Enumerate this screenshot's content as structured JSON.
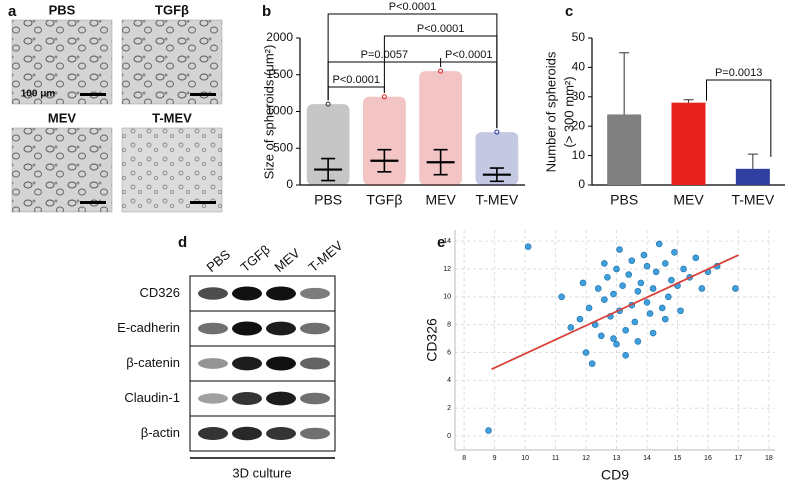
{
  "panel_labels": [
    "a",
    "b",
    "c",
    "d",
    "e"
  ],
  "micrographs": {
    "labels": [
      "PBS",
      "TGFβ",
      "MEV",
      "T-MEV"
    ],
    "scale_bar": "100 μm"
  },
  "chart_data": [
    {
      "type": "dot",
      "ylabel": "Size of spheroids (μm²)",
      "categories": [
        "PBS",
        "TGFβ",
        "MEV",
        "T-MEV"
      ],
      "colors": [
        "#333333",
        "#d42a2a",
        "#d42a2a",
        "#2b3a9c"
      ],
      "values": [
        210,
        330,
        310,
        140
      ],
      "errors": [
        150,
        150,
        170,
        90
      ],
      "max": [
        1100,
        1200,
        1550,
        720
      ],
      "ylim": [
        0,
        2000
      ],
      "yticks": [
        0,
        500,
        1000,
        1500,
        2000
      ],
      "annotations": [
        {
          "text": "P<0.0001",
          "between": [
            0,
            1
          ]
        },
        {
          "text": "P=0.0057",
          "between": [
            0,
            2
          ]
        },
        {
          "text": "P<0.0001",
          "between": [
            2,
            3
          ]
        },
        {
          "text": "P<0.0001",
          "between": [
            1,
            3
          ]
        },
        {
          "text": "P<0.0001",
          "between": [
            0,
            3
          ]
        }
      ]
    },
    {
      "type": "bar",
      "ylabel": [
        "Number of spheroids",
        "(> 300 mm²)"
      ],
      "categories": [
        "PBS",
        "MEV",
        "T-MEV"
      ],
      "colors": [
        "#808080",
        "#e8201e",
        "#2e3fa0"
      ],
      "values": [
        24,
        28,
        5.5
      ],
      "errors": [
        21,
        1,
        5
      ],
      "ylim": [
        0,
        50
      ],
      "yticks": [
        0,
        10,
        20,
        30,
        40,
        50
      ],
      "annotations": [
        {
          "text": "P=0.0013",
          "between": [
            1,
            2
          ]
        }
      ]
    },
    {
      "type": "scatter",
      "xlabel": "CD9",
      "ylabel": "CD326",
      "color": "#3f9fdc",
      "grid": true,
      "x": [
        8.8,
        10.1,
        11.2,
        11.5,
        11.8,
        12.0,
        12.1,
        12.3,
        12.4,
        12.5,
        12.6,
        12.7,
        12.8,
        12.9,
        13.0,
        13.0,
        13.1,
        13.2,
        13.3,
        13.4,
        13.5,
        13.5,
        13.6,
        13.7,
        13.8,
        13.9,
        14.0,
        14.0,
        14.1,
        14.2,
        14.3,
        14.4,
        14.5,
        14.6,
        14.7,
        14.8,
        14.9,
        15.0,
        15.2,
        15.4,
        15.6,
        15.8,
        16.0,
        16.3,
        16.9,
        12.2,
        12.9,
        13.3,
        13.7,
        14.2,
        11.9,
        12.6,
        13.1,
        14.6,
        15.1
      ],
      "y": [
        0.4,
        13.6,
        10.0,
        7.8,
        8.4,
        6.0,
        9.2,
        8.0,
        10.6,
        7.2,
        9.8,
        11.4,
        8.6,
        10.2,
        6.6,
        12.0,
        9.0,
        10.8,
        7.6,
        11.6,
        9.4,
        12.6,
        8.2,
        10.4,
        11.0,
        13.0,
        9.6,
        12.2,
        8.8,
        10.6,
        11.8,
        13.8,
        9.2,
        12.4,
        10.0,
        11.2,
        13.2,
        10.8,
        12.0,
        11.4,
        12.8,
        10.6,
        11.8,
        12.2,
        10.6,
        5.2,
        7.0,
        5.8,
        6.8,
        7.4,
        11.0,
        12.4,
        13.4,
        8.4,
        9.0
      ],
      "trendline": {
        "color": "#d9413a",
        "x": [
          8.9,
          17
        ],
        "y": [
          4.8,
          13
        ]
      },
      "xlim": [
        7.7,
        18.2
      ],
      "xticks": [
        8,
        9,
        10,
        11,
        12,
        13,
        14,
        15,
        16,
        17,
        18
      ],
      "ylim": [
        -1,
        14.8
      ],
      "yticks": [
        0,
        2,
        4,
        6,
        8,
        10,
        12,
        14
      ]
    }
  ],
  "blot": {
    "columns": [
      "PBS",
      "TGFβ",
      "MEV",
      "T-MEV"
    ],
    "rows": [
      "CD326",
      "E-cadherin",
      "β-catenin",
      "Claudin-1",
      "β-actin"
    ],
    "footer": "3D culture"
  }
}
